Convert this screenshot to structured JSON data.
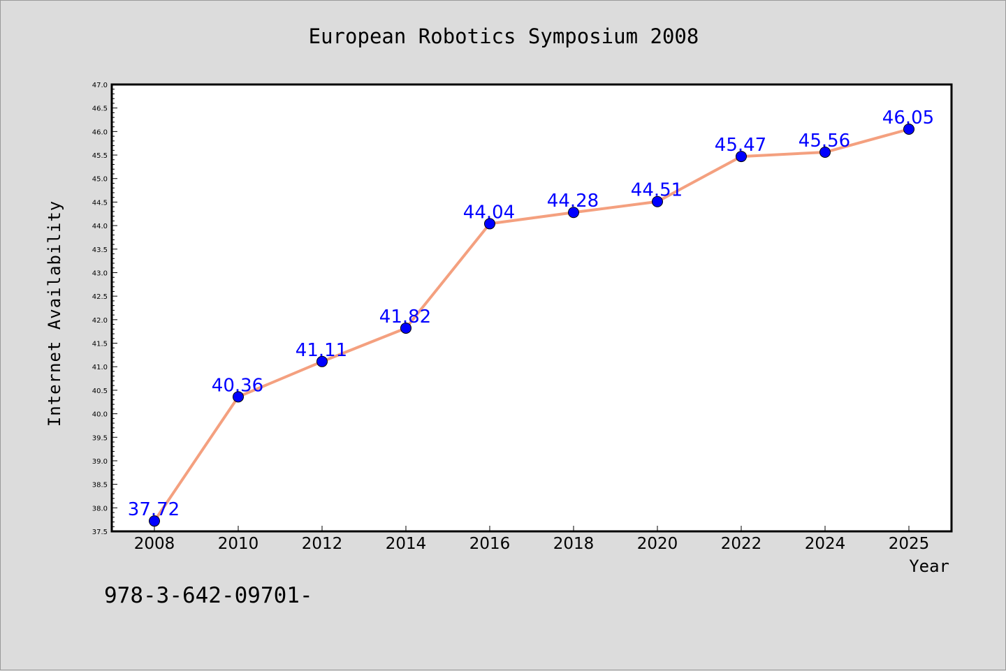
{
  "chart_data": {
    "type": "line",
    "title": "European Robotics Symposium 2008",
    "xlabel": "Year",
    "ylabel": "Internet Availability",
    "categories": [
      "2008",
      "2010",
      "2012",
      "2014",
      "2016",
      "2018",
      "2020",
      "2022",
      "2024",
      "2025"
    ],
    "series": [
      {
        "values": [
          37.72,
          40.36,
          41.11,
          41.82,
          44.04,
          44.28,
          44.51,
          45.47,
          45.56,
          46.05
        ],
        "data_labels": [
          "37.72",
          "40.36",
          "41.11",
          "41.82",
          "44.04",
          "44.28",
          "44.51",
          "45.47",
          "45.56",
          "46.05"
        ]
      }
    ],
    "ylim": [
      37.5,
      47.0
    ],
    "y_ticks": [
      "37.5",
      "38.0",
      "38.5",
      "39.0",
      "39.5",
      "40.0",
      "40.5",
      "41.0",
      "41.5",
      "42.0",
      "42.5",
      "43.0",
      "43.5",
      "44.0",
      "44.5",
      "45.0",
      "45.5",
      "46.0",
      "46.5",
      "47.0"
    ],
    "grid": false,
    "legend": "none",
    "colors": {
      "line": "#f4a07f",
      "marker": "#0000ff",
      "data_label": "#0000ff",
      "plot_background": "#ffffff",
      "figure_background": "#dcdcdc"
    }
  },
  "footer_text": "978-3-642-09701-"
}
